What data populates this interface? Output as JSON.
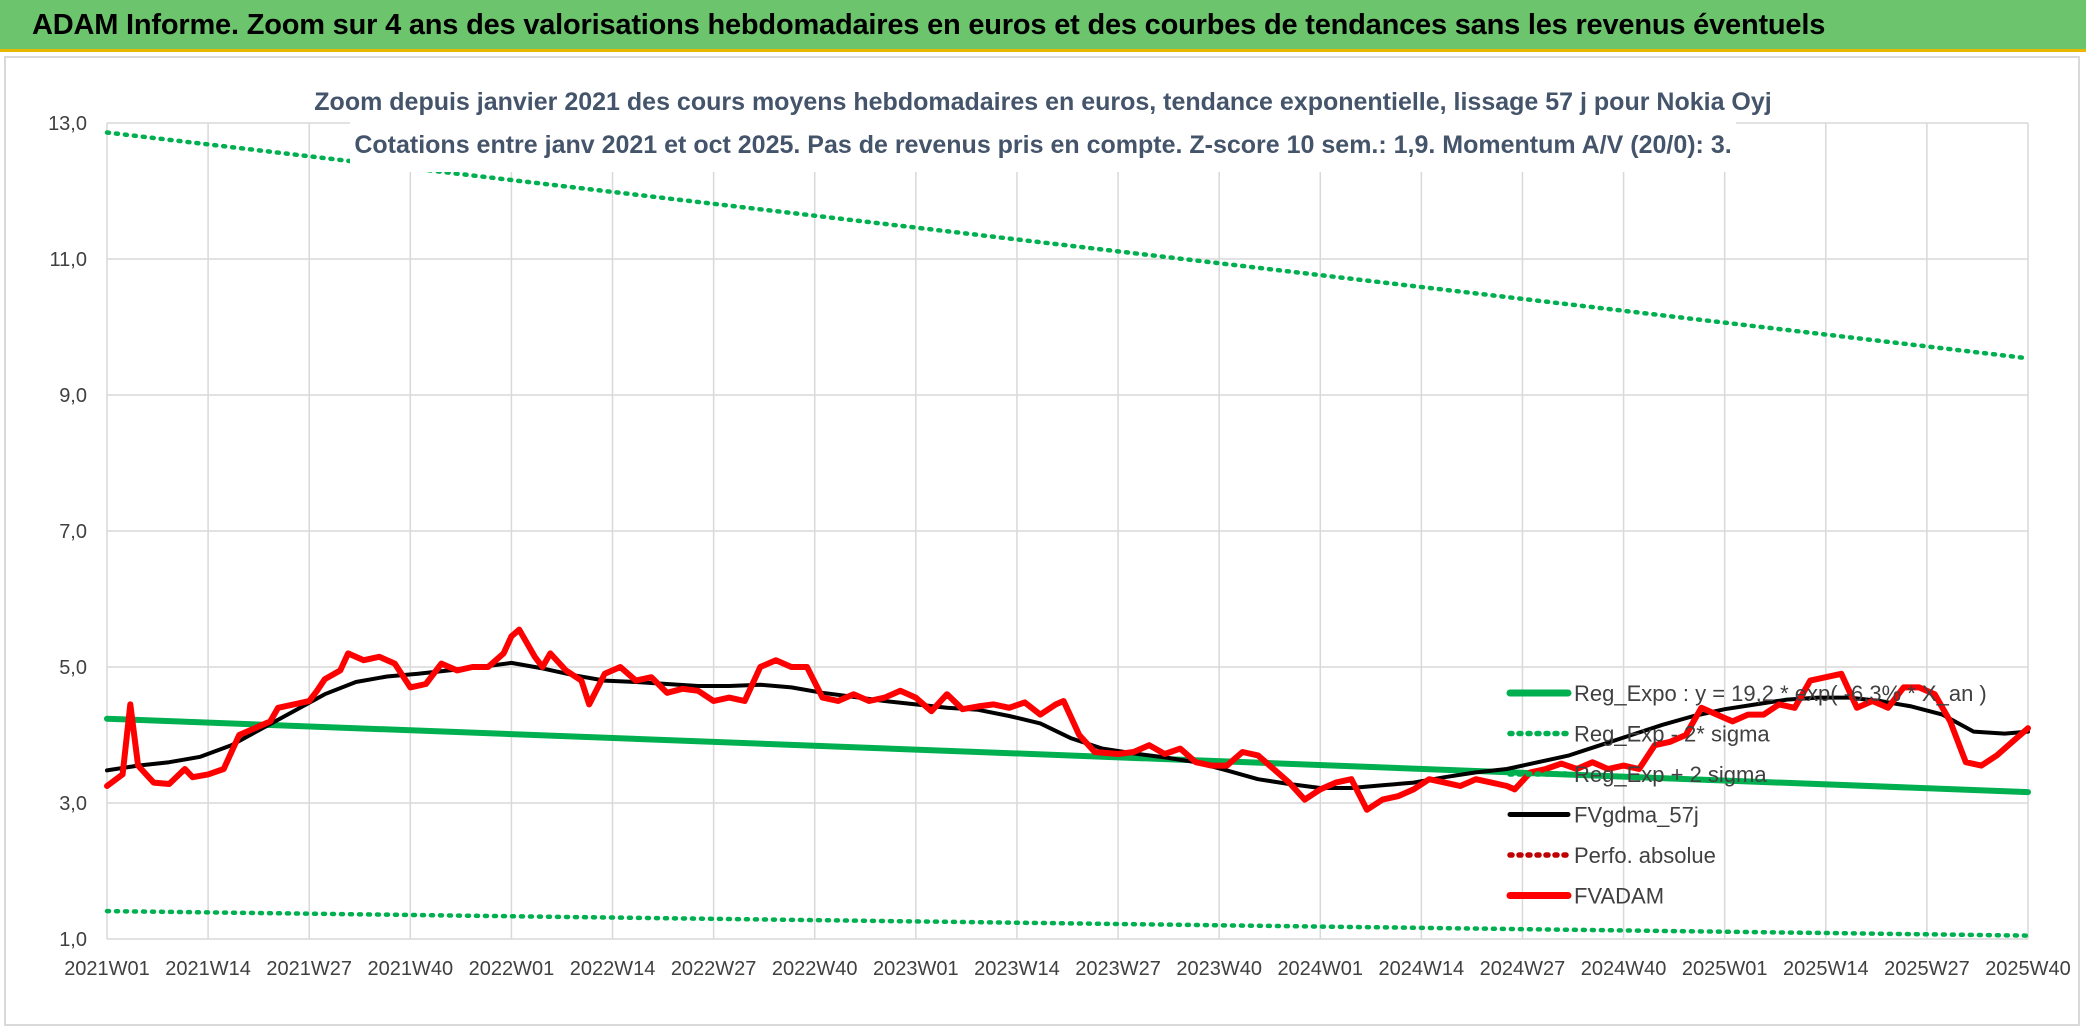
{
  "header": {
    "title": "ADAM Informe. Zoom sur 4 ans des valorisations hebdomadaires en euros et des courbes de tendances sans les revenus éventuels"
  },
  "colors": {
    "banner": "#6cc46c",
    "banner_border": "#e8b800",
    "trend_green": "#00b050",
    "sigma_green": "#00b050",
    "gdma_black": "#000000",
    "perfo_red": "#c00000",
    "fvadam_red": "#ff0000",
    "grid": "#d9d9d9",
    "title_color": "#44546a"
  },
  "chart_data": {
    "type": "line",
    "title": "Zoom depuis janvier 2021 des cours moyens hebdomadaires en euros, tendance exponentielle, lissage 57 j pour Nokia Oyj",
    "subtitle": "Cotations entre janv 2021 et oct 2025. Pas de revenus pris en compte. Z-score 10 sem.: 1,9. Momentum A/V (20/0): 3.",
    "xlabel": "",
    "ylabel": "",
    "ylim": [
      1.0,
      13.0
    ],
    "yticks": [
      "1,0",
      "3,0",
      "5,0",
      "7,0",
      "9,0",
      "11,0",
      "13,0"
    ],
    "ytick_values": [
      1,
      3,
      5,
      7,
      9,
      11,
      13
    ],
    "x_range_weeks": [
      0,
      247
    ],
    "xticks": [
      {
        "label": "2021W01",
        "week": 0
      },
      {
        "label": "2021W14",
        "week": 13
      },
      {
        "label": "2021W27",
        "week": 26
      },
      {
        "label": "2021W40",
        "week": 39
      },
      {
        "label": "2022W01",
        "week": 52
      },
      {
        "label": "2022W14",
        "week": 65
      },
      {
        "label": "2022W27",
        "week": 78
      },
      {
        "label": "2022W40",
        "week": 91
      },
      {
        "label": "2023W01",
        "week": 104
      },
      {
        "label": "2023W14",
        "week": 117
      },
      {
        "label": "2023W27",
        "week": 130
      },
      {
        "label": "2023W40",
        "week": 143
      },
      {
        "label": "2024W01",
        "week": 156
      },
      {
        "label": "2024W14",
        "week": 169
      },
      {
        "label": "2024W27",
        "week": 182
      },
      {
        "label": "2024W40",
        "week": 195
      },
      {
        "label": "2025W01",
        "week": 208
      },
      {
        "label": "2025W14",
        "week": 221
      },
      {
        "label": "2025W27",
        "week": 234
      },
      {
        "label": "2025W40",
        "week": 247
      }
    ],
    "grid": true,
    "legend_position": "bottom-right",
    "series": [
      {
        "name": "Reg_Expo : y = 19,2 * exp( -6,3% * X_an )",
        "style": "solid-thick",
        "color": "#00b050",
        "points": [
          [
            0,
            4.24
          ],
          [
            247,
            3.16
          ]
        ]
      },
      {
        "name": "Reg_Exp - 2* sigma",
        "style": "dotted",
        "color": "#00b050",
        "points": [
          [
            0,
            1.41
          ],
          [
            247,
            1.05
          ]
        ]
      },
      {
        "name": "Reg_Exp + 2 sigma",
        "style": "dotted",
        "color": "#00b050",
        "points": [
          [
            0,
            12.86
          ],
          [
            247,
            9.54
          ]
        ]
      },
      {
        "name": "FVgdma_57j",
        "style": "solid",
        "color": "#000000",
        "points": [
          [
            0,
            3.48
          ],
          [
            4,
            3.55
          ],
          [
            8,
            3.6
          ],
          [
            12,
            3.68
          ],
          [
            16,
            3.85
          ],
          [
            20,
            4.1
          ],
          [
            24,
            4.35
          ],
          [
            28,
            4.6
          ],
          [
            32,
            4.78
          ],
          [
            36,
            4.86
          ],
          [
            40,
            4.9
          ],
          [
            44,
            4.95
          ],
          [
            48,
            5.0
          ],
          [
            52,
            5.06
          ],
          [
            56,
            4.98
          ],
          [
            60,
            4.88
          ],
          [
            64,
            4.8
          ],
          [
            68,
            4.78
          ],
          [
            72,
            4.75
          ],
          [
            76,
            4.72
          ],
          [
            80,
            4.72
          ],
          [
            84,
            4.74
          ],
          [
            88,
            4.7
          ],
          [
            92,
            4.62
          ],
          [
            96,
            4.56
          ],
          [
            100,
            4.5
          ],
          [
            104,
            4.45
          ],
          [
            108,
            4.4
          ],
          [
            112,
            4.37
          ],
          [
            116,
            4.28
          ],
          [
            120,
            4.17
          ],
          [
            124,
            3.95
          ],
          [
            128,
            3.8
          ],
          [
            132,
            3.73
          ],
          [
            136,
            3.67
          ],
          [
            140,
            3.6
          ],
          [
            144,
            3.48
          ],
          [
            148,
            3.35
          ],
          [
            152,
            3.28
          ],
          [
            156,
            3.22
          ],
          [
            160,
            3.22
          ],
          [
            164,
            3.26
          ],
          [
            168,
            3.3
          ],
          [
            172,
            3.38
          ],
          [
            176,
            3.45
          ],
          [
            180,
            3.5
          ],
          [
            184,
            3.6
          ],
          [
            188,
            3.7
          ],
          [
            192,
            3.85
          ],
          [
            196,
            4.0
          ],
          [
            200,
            4.15
          ],
          [
            204,
            4.28
          ],
          [
            208,
            4.38
          ],
          [
            212,
            4.45
          ],
          [
            216,
            4.52
          ],
          [
            220,
            4.55
          ],
          [
            224,
            4.55
          ],
          [
            228,
            4.5
          ],
          [
            232,
            4.42
          ],
          [
            236,
            4.3
          ],
          [
            240,
            4.05
          ],
          [
            244,
            4.02
          ],
          [
            247,
            4.05
          ]
        ]
      },
      {
        "name": "Perfo. absolue",
        "style": "dotted",
        "color": "#c00000",
        "points": []
      },
      {
        "name": "FVADAM",
        "style": "solid-thick",
        "color": "#ff0000",
        "points": [
          [
            0,
            3.25
          ],
          [
            2,
            3.42
          ],
          [
            3,
            4.45
          ],
          [
            4,
            3.55
          ],
          [
            6,
            3.3
          ],
          [
            8,
            3.28
          ],
          [
            10,
            3.5
          ],
          [
            11,
            3.38
          ],
          [
            13,
            3.42
          ],
          [
            15,
            3.5
          ],
          [
            17,
            4.0
          ],
          [
            19,
            4.1
          ],
          [
            21,
            4.2
          ],
          [
            22,
            4.4
          ],
          [
            24,
            4.45
          ],
          [
            26,
            4.5
          ],
          [
            27,
            4.65
          ],
          [
            28,
            4.82
          ],
          [
            30,
            4.95
          ],
          [
            31,
            5.2
          ],
          [
            33,
            5.1
          ],
          [
            35,
            5.15
          ],
          [
            37,
            5.05
          ],
          [
            39,
            4.7
          ],
          [
            41,
            4.75
          ],
          [
            43,
            5.05
          ],
          [
            45,
            4.95
          ],
          [
            47,
            5.0
          ],
          [
            49,
            5.0
          ],
          [
            51,
            5.2
          ],
          [
            52,
            5.45
          ],
          [
            53,
            5.55
          ],
          [
            55,
            5.15
          ],
          [
            56,
            5.0
          ],
          [
            57,
            5.2
          ],
          [
            59,
            4.95
          ],
          [
            61,
            4.8
          ],
          [
            62,
            4.45
          ],
          [
            64,
            4.9
          ],
          [
            66,
            5.0
          ],
          [
            68,
            4.8
          ],
          [
            70,
            4.85
          ],
          [
            72,
            4.62
          ],
          [
            74,
            4.68
          ],
          [
            76,
            4.65
          ],
          [
            78,
            4.5
          ],
          [
            80,
            4.55
          ],
          [
            82,
            4.5
          ],
          [
            84,
            5.0
          ],
          [
            86,
            5.1
          ],
          [
            88,
            5.0
          ],
          [
            90,
            5.0
          ],
          [
            92,
            4.55
          ],
          [
            94,
            4.5
          ],
          [
            96,
            4.6
          ],
          [
            98,
            4.5
          ],
          [
            100,
            4.55
          ],
          [
            102,
            4.65
          ],
          [
            104,
            4.55
          ],
          [
            106,
            4.35
          ],
          [
            108,
            4.6
          ],
          [
            110,
            4.38
          ],
          [
            112,
            4.42
          ],
          [
            114,
            4.45
          ],
          [
            116,
            4.4
          ],
          [
            118,
            4.48
          ],
          [
            120,
            4.3
          ],
          [
            122,
            4.45
          ],
          [
            123,
            4.5
          ],
          [
            125,
            4.0
          ],
          [
            127,
            3.75
          ],
          [
            130,
            3.72
          ],
          [
            132,
            3.75
          ],
          [
            134,
            3.85
          ],
          [
            136,
            3.72
          ],
          [
            138,
            3.8
          ],
          [
            140,
            3.6
          ],
          [
            142,
            3.55
          ],
          [
            144,
            3.55
          ],
          [
            146,
            3.75
          ],
          [
            148,
            3.7
          ],
          [
            150,
            3.5
          ],
          [
            152,
            3.3
          ],
          [
            154,
            3.05
          ],
          [
            156,
            3.2
          ],
          [
            158,
            3.3
          ],
          [
            160,
            3.35
          ],
          [
            162,
            2.9
          ],
          [
            164,
            3.05
          ],
          [
            166,
            3.1
          ],
          [
            168,
            3.2
          ],
          [
            170,
            3.35
          ],
          [
            172,
            3.3
          ],
          [
            174,
            3.25
          ],
          [
            176,
            3.35
          ],
          [
            178,
            3.3
          ],
          [
            180,
            3.25
          ],
          [
            181,
            3.2
          ],
          [
            183,
            3.45
          ],
          [
            185,
            3.5
          ],
          [
            187,
            3.58
          ],
          [
            189,
            3.5
          ],
          [
            191,
            3.6
          ],
          [
            193,
            3.5
          ],
          [
            195,
            3.55
          ],
          [
            197,
            3.5
          ],
          [
            199,
            3.85
          ],
          [
            201,
            3.9
          ],
          [
            203,
            4.0
          ],
          [
            205,
            4.4
          ],
          [
            207,
            4.3
          ],
          [
            209,
            4.2
          ],
          [
            211,
            4.3
          ],
          [
            213,
            4.3
          ],
          [
            215,
            4.45
          ],
          [
            217,
            4.4
          ],
          [
            219,
            4.8
          ],
          [
            221,
            4.85
          ],
          [
            223,
            4.9
          ],
          [
            225,
            4.4
          ],
          [
            227,
            4.5
          ],
          [
            229,
            4.4
          ],
          [
            231,
            4.7
          ],
          [
            233,
            4.7
          ],
          [
            235,
            4.6
          ],
          [
            237,
            4.2
          ],
          [
            239,
            3.6
          ],
          [
            241,
            3.55
          ],
          [
            243,
            3.7
          ],
          [
            245,
            3.9
          ],
          [
            247,
            4.1
          ]
        ]
      }
    ]
  }
}
